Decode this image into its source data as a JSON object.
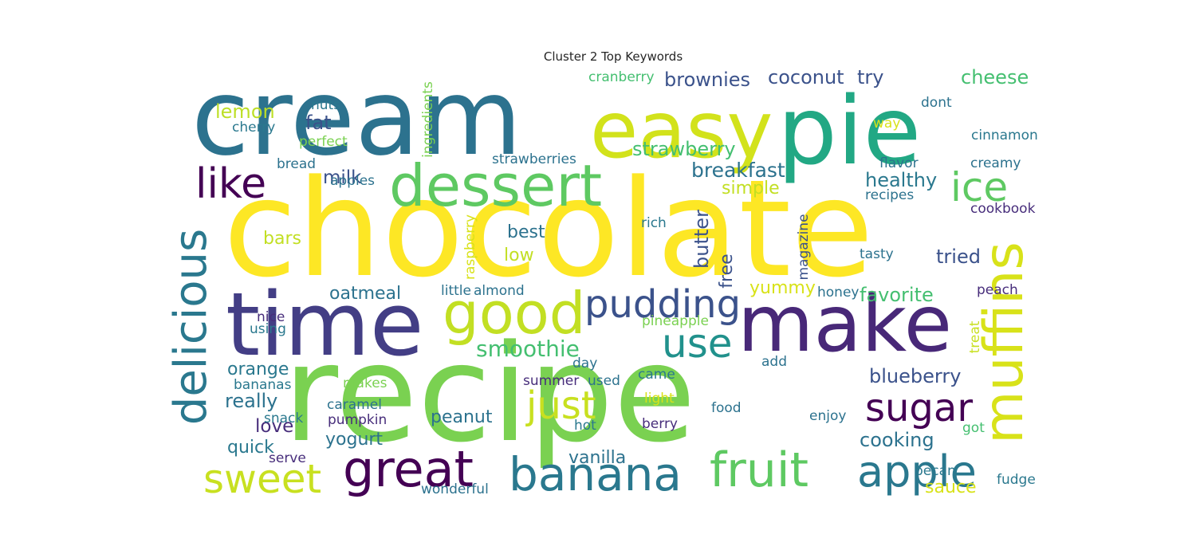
{
  "chart_data": {
    "type": "wordcloud",
    "title": "Cluster 2 Top Keywords",
    "background": "#ffffff",
    "colormap": "viridis",
    "words": [
      {
        "text": "chocolate",
        "weight": 1.0,
        "color": "#fde725",
        "rotated": false
      },
      {
        "text": "recipe",
        "weight": 0.95,
        "color": "#7ad151",
        "rotated": false
      },
      {
        "text": "cream",
        "weight": 0.82,
        "color": "#2c728e",
        "rotated": false
      },
      {
        "text": "easy",
        "weight": 0.62,
        "color": "#d2e21b",
        "rotated": false
      },
      {
        "text": "pie",
        "weight": 0.62,
        "color": "#22a884",
        "rotated": false
      },
      {
        "text": "time",
        "weight": 0.58,
        "color": "#433e85",
        "rotated": false
      },
      {
        "text": "make",
        "weight": 0.58,
        "color": "#482878",
        "rotated": false
      },
      {
        "text": "muffins",
        "weight": 0.42,
        "color": "#d8e219",
        "rotated": true
      },
      {
        "text": "dessert",
        "weight": 0.4,
        "color": "#5ec962",
        "rotated": false
      },
      {
        "text": "good",
        "weight": 0.4,
        "color": "#c2df23",
        "rotated": false
      },
      {
        "text": "delicious",
        "weight": 0.36,
        "color": "#2a788e",
        "rotated": true
      },
      {
        "text": "great",
        "weight": 0.32,
        "color": "#440154",
        "rotated": false
      },
      {
        "text": "banana",
        "weight": 0.32,
        "color": "#2a788e",
        "rotated": false
      },
      {
        "text": "fruit",
        "weight": 0.32,
        "color": "#5ec962",
        "rotated": false
      },
      {
        "text": "apple",
        "weight": 0.3,
        "color": "#2a788e",
        "rotated": false
      },
      {
        "text": "like",
        "weight": 0.3,
        "color": "#440154",
        "rotated": false
      },
      {
        "text": "pudding",
        "weight": 0.28,
        "color": "#3b528b",
        "rotated": false
      },
      {
        "text": "use",
        "weight": 0.28,
        "color": "#21918c",
        "rotated": false
      },
      {
        "text": "sweet",
        "weight": 0.28,
        "color": "#c8e020",
        "rotated": false
      },
      {
        "text": "just",
        "weight": 0.28,
        "color": "#c8e020",
        "rotated": false
      },
      {
        "text": "sugar",
        "weight": 0.26,
        "color": "#440154",
        "rotated": false
      },
      {
        "text": "ice",
        "weight": 0.26,
        "color": "#5ec962",
        "rotated": false
      },
      {
        "text": "smoothie",
        "weight": 0.18,
        "color": "#44bf70",
        "rotated": false
      },
      {
        "text": "breakfast",
        "weight": 0.16,
        "color": "#2c728e",
        "rotated": false
      },
      {
        "text": "strawberry",
        "weight": 0.15,
        "color": "#44bf70",
        "rotated": false
      },
      {
        "text": "brownies",
        "weight": 0.15,
        "color": "#3b528b",
        "rotated": false
      },
      {
        "text": "coconut",
        "weight": 0.15,
        "color": "#3b528b",
        "rotated": false
      },
      {
        "text": "try",
        "weight": 0.14,
        "color": "#3b528b",
        "rotated": false
      },
      {
        "text": "cheese",
        "weight": 0.15,
        "color": "#44bf70",
        "rotated": false
      },
      {
        "text": "butter",
        "weight": 0.15,
        "color": "#3b528b",
        "rotated": true
      },
      {
        "text": "healthy",
        "weight": 0.15,
        "color": "#2a788e",
        "rotated": false
      },
      {
        "text": "lemon",
        "weight": 0.14,
        "color": "#bddf26",
        "rotated": false
      },
      {
        "text": "fat",
        "weight": 0.14,
        "color": "#3b528b",
        "rotated": false
      },
      {
        "text": "milk",
        "weight": 0.14,
        "color": "#3b528b",
        "rotated": false
      },
      {
        "text": "oatmeal",
        "weight": 0.14,
        "color": "#2c728e",
        "rotated": false
      },
      {
        "text": "favorite",
        "weight": 0.14,
        "color": "#44bf70",
        "rotated": false
      },
      {
        "text": "blueberry",
        "weight": 0.14,
        "color": "#3b528b",
        "rotated": false
      },
      {
        "text": "peanut",
        "weight": 0.14,
        "color": "#2c728e",
        "rotated": false
      },
      {
        "text": "really",
        "weight": 0.14,
        "color": "#2c728e",
        "rotated": false
      },
      {
        "text": "orange",
        "weight": 0.14,
        "color": "#2a788e",
        "rotated": false
      },
      {
        "text": "love",
        "weight": 0.14,
        "color": "#472d7b",
        "rotated": false
      },
      {
        "text": "yogurt",
        "weight": 0.14,
        "color": "#2c728e",
        "rotated": false
      },
      {
        "text": "quick",
        "weight": 0.13,
        "color": "#2a788e",
        "rotated": false
      },
      {
        "text": "cooking",
        "weight": 0.14,
        "color": "#2c728e",
        "rotated": false
      },
      {
        "text": "tried",
        "weight": 0.14,
        "color": "#3b528b",
        "rotated": false
      },
      {
        "text": "bars",
        "weight": 0.13,
        "color": "#c2df23",
        "rotated": false
      },
      {
        "text": "best",
        "weight": 0.13,
        "color": "#2c728e",
        "rotated": false
      },
      {
        "text": "low",
        "weight": 0.13,
        "color": "#c2df23",
        "rotated": false
      },
      {
        "text": "simple",
        "weight": 0.13,
        "color": "#c2df23",
        "rotated": false
      },
      {
        "text": "yummy",
        "weight": 0.13,
        "color": "#d8e219",
        "rotated": false
      },
      {
        "text": "free",
        "weight": 0.13,
        "color": "#3b528b",
        "rotated": true
      },
      {
        "text": "vanilla",
        "weight": 0.12,
        "color": "#2c728e",
        "rotated": false
      },
      {
        "text": "sauce",
        "weight": 0.12,
        "color": "#d8e219",
        "rotated": false
      },
      {
        "text": "cranberry",
        "weight": 0.1,
        "color": "#44bf70",
        "rotated": false
      },
      {
        "text": "nuts",
        "weight": 0.1,
        "color": "#2a788e",
        "rotated": false
      },
      {
        "text": "cherry",
        "weight": 0.1,
        "color": "#2a788e",
        "rotated": false
      },
      {
        "text": "perfect",
        "weight": 0.1,
        "color": "#7ad151",
        "rotated": false
      },
      {
        "text": "bread",
        "weight": 0.1,
        "color": "#2c728e",
        "rotated": false
      },
      {
        "text": "apples",
        "weight": 0.1,
        "color": "#2c728e",
        "rotated": false
      },
      {
        "text": "strawberries",
        "weight": 0.1,
        "color": "#2c728e",
        "rotated": false
      },
      {
        "text": "ingredients",
        "weight": 0.1,
        "color": "#7ad151",
        "rotated": true
      },
      {
        "text": "raspberry",
        "weight": 0.09,
        "color": "#d8e219",
        "rotated": true
      },
      {
        "text": "magazine",
        "weight": 0.09,
        "color": "#3b528b",
        "rotated": true
      },
      {
        "text": "rich",
        "weight": 0.1,
        "color": "#2a788e",
        "rotated": false
      },
      {
        "text": "dont",
        "weight": 0.1,
        "color": "#2c728e",
        "rotated": false
      },
      {
        "text": "way",
        "weight": 0.1,
        "color": "#d8e219",
        "rotated": false
      },
      {
        "text": "cinnamon",
        "weight": 0.1,
        "color": "#2a788e",
        "rotated": false
      },
      {
        "text": "flavor",
        "weight": 0.1,
        "color": "#2c728e",
        "rotated": false
      },
      {
        "text": "creamy",
        "weight": 0.1,
        "color": "#2c728e",
        "rotated": false
      },
      {
        "text": "recipes",
        "weight": 0.1,
        "color": "#2c728e",
        "rotated": false
      },
      {
        "text": "cookbook",
        "weight": 0.1,
        "color": "#472d7b",
        "rotated": false
      },
      {
        "text": "tasty",
        "weight": 0.1,
        "color": "#2c728e",
        "rotated": false
      },
      {
        "text": "honey",
        "weight": 0.1,
        "color": "#2c728e",
        "rotated": false
      },
      {
        "text": "peach",
        "weight": 0.1,
        "color": "#472d7b",
        "rotated": false
      },
      {
        "text": "treat",
        "weight": 0.09,
        "color": "#c8e020",
        "rotated": true
      },
      {
        "text": "little",
        "weight": 0.1,
        "color": "#2c728e",
        "rotated": false
      },
      {
        "text": "almond",
        "weight": 0.1,
        "color": "#2c728e",
        "rotated": false
      },
      {
        "text": "nice",
        "weight": 0.1,
        "color": "#472d7b",
        "rotated": false
      },
      {
        "text": "using",
        "weight": 0.1,
        "color": "#2a788e",
        "rotated": false
      },
      {
        "text": "pineapple",
        "weight": 0.1,
        "color": "#7ad151",
        "rotated": false
      },
      {
        "text": "day",
        "weight": 0.1,
        "color": "#2c728e",
        "rotated": false
      },
      {
        "text": "add",
        "weight": 0.1,
        "color": "#2c728e",
        "rotated": false
      },
      {
        "text": "came",
        "weight": 0.1,
        "color": "#2a788e",
        "rotated": false
      },
      {
        "text": "bananas",
        "weight": 0.1,
        "color": "#2a788e",
        "rotated": false
      },
      {
        "text": "makes",
        "weight": 0.1,
        "color": "#7ad151",
        "rotated": false
      },
      {
        "text": "summer",
        "weight": 0.1,
        "color": "#472d7b",
        "rotated": false
      },
      {
        "text": "used",
        "weight": 0.1,
        "color": "#2c728e",
        "rotated": false
      },
      {
        "text": "light",
        "weight": 0.1,
        "color": "#d8e219",
        "rotated": false
      },
      {
        "text": "caramel",
        "weight": 0.1,
        "color": "#2c728e",
        "rotated": false
      },
      {
        "text": "snack",
        "weight": 0.1,
        "color": "#2a788e",
        "rotated": false
      },
      {
        "text": "pumpkin",
        "weight": 0.1,
        "color": "#472d7b",
        "rotated": false
      },
      {
        "text": "food",
        "weight": 0.1,
        "color": "#2c728e",
        "rotated": false
      },
      {
        "text": "enjoy",
        "weight": 0.1,
        "color": "#2c728e",
        "rotated": false
      },
      {
        "text": "got",
        "weight": 0.1,
        "color": "#44bf70",
        "rotated": false
      },
      {
        "text": "hot",
        "weight": 0.1,
        "color": "#2a788e",
        "rotated": false
      },
      {
        "text": "berry",
        "weight": 0.1,
        "color": "#472d7b",
        "rotated": false
      },
      {
        "text": "serve",
        "weight": 0.1,
        "color": "#472d7b",
        "rotated": false
      },
      {
        "text": "pecan",
        "weight": 0.1,
        "color": "#2a788e",
        "rotated": false
      },
      {
        "text": "wonderful",
        "weight": 0.1,
        "color": "#2c728e",
        "rotated": false
      },
      {
        "text": "fudge",
        "weight": 0.1,
        "color": "#2a788e",
        "rotated": false
      }
    ]
  }
}
